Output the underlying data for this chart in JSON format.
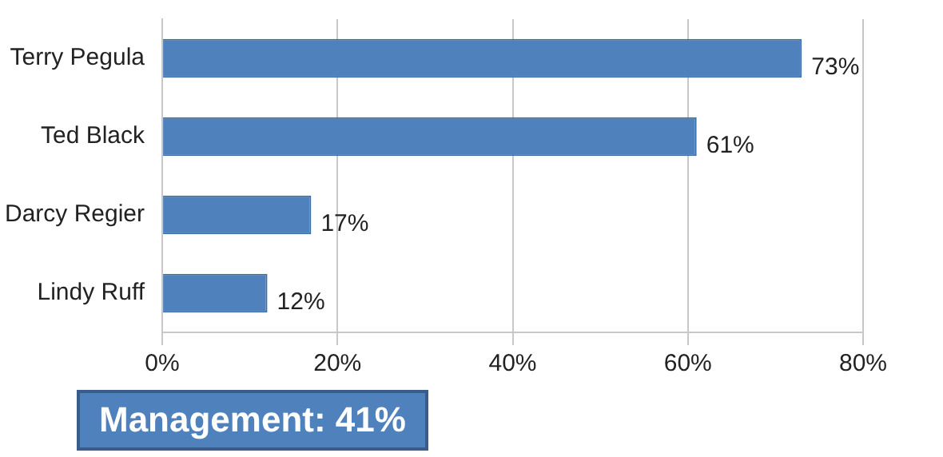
{
  "chart_data": {
    "type": "bar",
    "orientation": "horizontal",
    "categories": [
      "Terry Pegula",
      "Ted Black",
      "Darcy Regier",
      "Lindy Ruff"
    ],
    "values": [
      73,
      61,
      17,
      12
    ],
    "color": "#4f81bd",
    "value_labels": [
      "73%",
      "61%",
      "17%",
      "12%"
    ],
    "xlim": [
      0,
      80
    ],
    "xticks": [
      {
        "value": 0,
        "label": "0%"
      },
      {
        "value": 20,
        "label": "20%"
      },
      {
        "value": 40,
        "label": "40%"
      },
      {
        "value": 60,
        "label": "60%"
      },
      {
        "value": 80,
        "label": "80%"
      }
    ],
    "grid": "x",
    "legend": false,
    "annotations": [
      "Management: 41%"
    ]
  }
}
